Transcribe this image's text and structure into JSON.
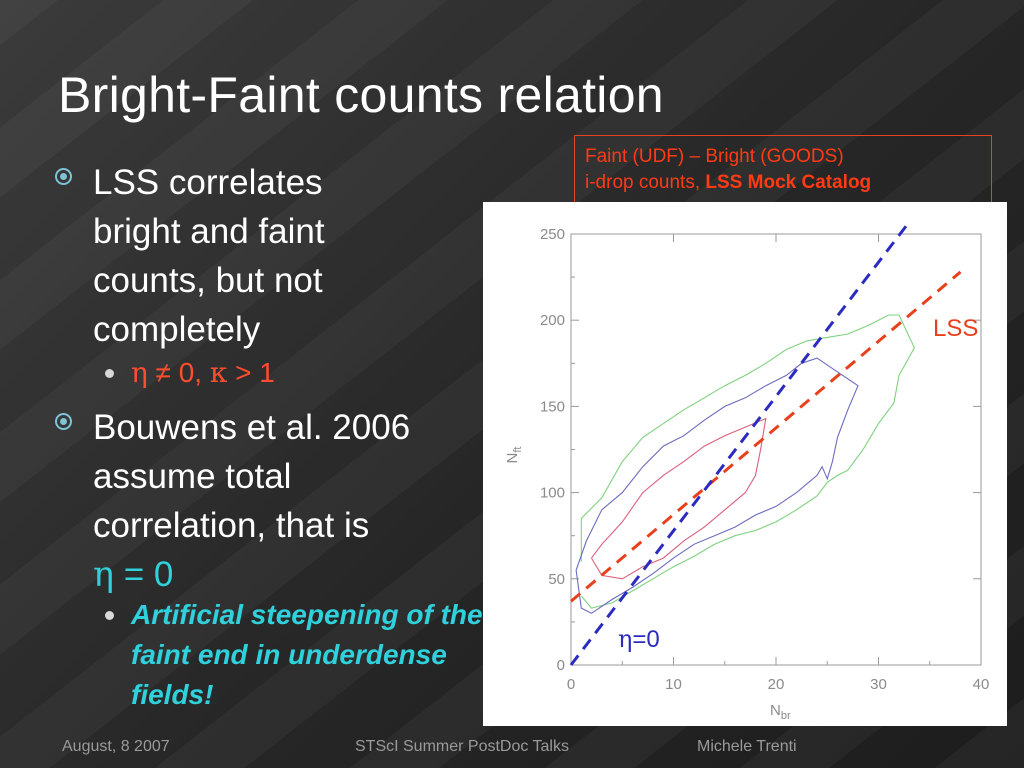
{
  "slide": {
    "title": "Bright-Faint counts relation",
    "bullets": {
      "b1": "LSS correlates bright and faint counts, but not completely",
      "b1_sub": {
        "eta": "η",
        "neq": " ≠ 0, ",
        "kappa": "κ",
        "gt": " > 1"
      },
      "b2_line1": "Bouwens et al. 2006",
      "b2_line2": "assume total",
      "b2_line3": "correlation, that is",
      "b2_eta": "η",
      "b2_eq": " = 0",
      "b2_sub": "Artificial steepening of the faint end in underdense fields!"
    },
    "legend": {
      "line1": "Faint (UDF) – Bright (GOODS)",
      "line2_prefix": "i-drop counts, ",
      "line2_bold": "LSS Mock Catalog"
    },
    "footer": {
      "date": "August, 8 2007",
      "event": "STScI Summer PostDoc Talks",
      "author": "Michele Trenti"
    }
  },
  "colors": {
    "accent_red": "#ff4d2e",
    "accent_cyan": "#2fd2dc",
    "outer_contour": "#7fd17f",
    "middle_contour": "#6b6bbf",
    "inner_contour": "#d9607a",
    "lss_line": "#e8401c",
    "eta_line": "#2b2bc0"
  },
  "chart_data": {
    "type": "line",
    "xlabel_main": "N",
    "xlabel_sub": "br",
    "ylabel_main": "N",
    "ylabel_sub": "ft",
    "xlim": [
      0,
      40
    ],
    "ylim": [
      0,
      250
    ],
    "xticks": [
      0,
      10,
      20,
      30,
      40
    ],
    "yticks": [
      0,
      50,
      100,
      150,
      200,
      250
    ],
    "series": [
      {
        "name": "LSS",
        "style": "dashed",
        "color": "#e8401c",
        "x": [
          0,
          38
        ],
        "y": [
          37,
          228
        ]
      },
      {
        "name": "η=0",
        "style": "dashed",
        "color": "#2b2bc0",
        "x": [
          0,
          33
        ],
        "y": [
          0,
          257
        ]
      }
    ],
    "contours": [
      {
        "level": "outer",
        "color": "#7fd17f",
        "x": [
          1,
          1,
          3,
          5,
          7,
          9,
          11,
          13,
          15,
          17,
          19,
          21,
          23,
          25,
          27,
          29,
          31,
          32,
          33.5,
          32,
          31.5,
          30,
          28.5,
          27,
          26,
          25,
          24,
          22,
          20,
          18,
          16,
          14,
          12,
          10,
          8,
          6,
          4,
          2,
          1
        ],
        "y": [
          60,
          85,
          97,
          118,
          132,
          140,
          148,
          155,
          162,
          168,
          175,
          183,
          188,
          190,
          192,
          197,
          203,
          203,
          184,
          168,
          152,
          140,
          125,
          113,
          110,
          106,
          98,
          90,
          83,
          78,
          75,
          70,
          63,
          57,
          50,
          43,
          36,
          33,
          40
        ]
      },
      {
        "level": "middle",
        "color": "#6b6bbf",
        "x": [
          0.5,
          1.5,
          3,
          5,
          7,
          9,
          11,
          13,
          15,
          17,
          19,
          21,
          22.5,
          24,
          26,
          28,
          27,
          26,
          25.5,
          25,
          24.5,
          24,
          22,
          20,
          18,
          16,
          14,
          12,
          10,
          8,
          6,
          4,
          2,
          1,
          0.5
        ],
        "y": [
          55,
          72,
          90,
          100,
          115,
          127,
          133,
          142,
          150,
          155,
          162,
          168,
          175,
          178,
          170,
          162,
          148,
          132,
          118,
          108,
          115,
          110,
          100,
          92,
          87,
          80,
          75,
          70,
          62,
          53,
          45,
          38,
          30,
          33,
          55
        ]
      },
      {
        "level": "inner",
        "color": "#d9607a",
        "x": [
          2,
          3,
          5,
          7,
          9,
          11,
          13,
          15,
          17,
          19,
          18.5,
          18,
          17,
          15,
          13,
          11,
          9,
          7,
          5,
          3,
          2
        ],
        "y": [
          62,
          70,
          83,
          100,
          110,
          118,
          127,
          133,
          138,
          143,
          125,
          110,
          100,
          90,
          80,
          72,
          62,
          57,
          50,
          52,
          62
        ]
      }
    ],
    "annotations": [
      {
        "text": "LSS",
        "color": "#e8401c"
      },
      {
        "text_greek": "η",
        "text": "=0",
        "color": "#2b2bc0"
      }
    ]
  }
}
